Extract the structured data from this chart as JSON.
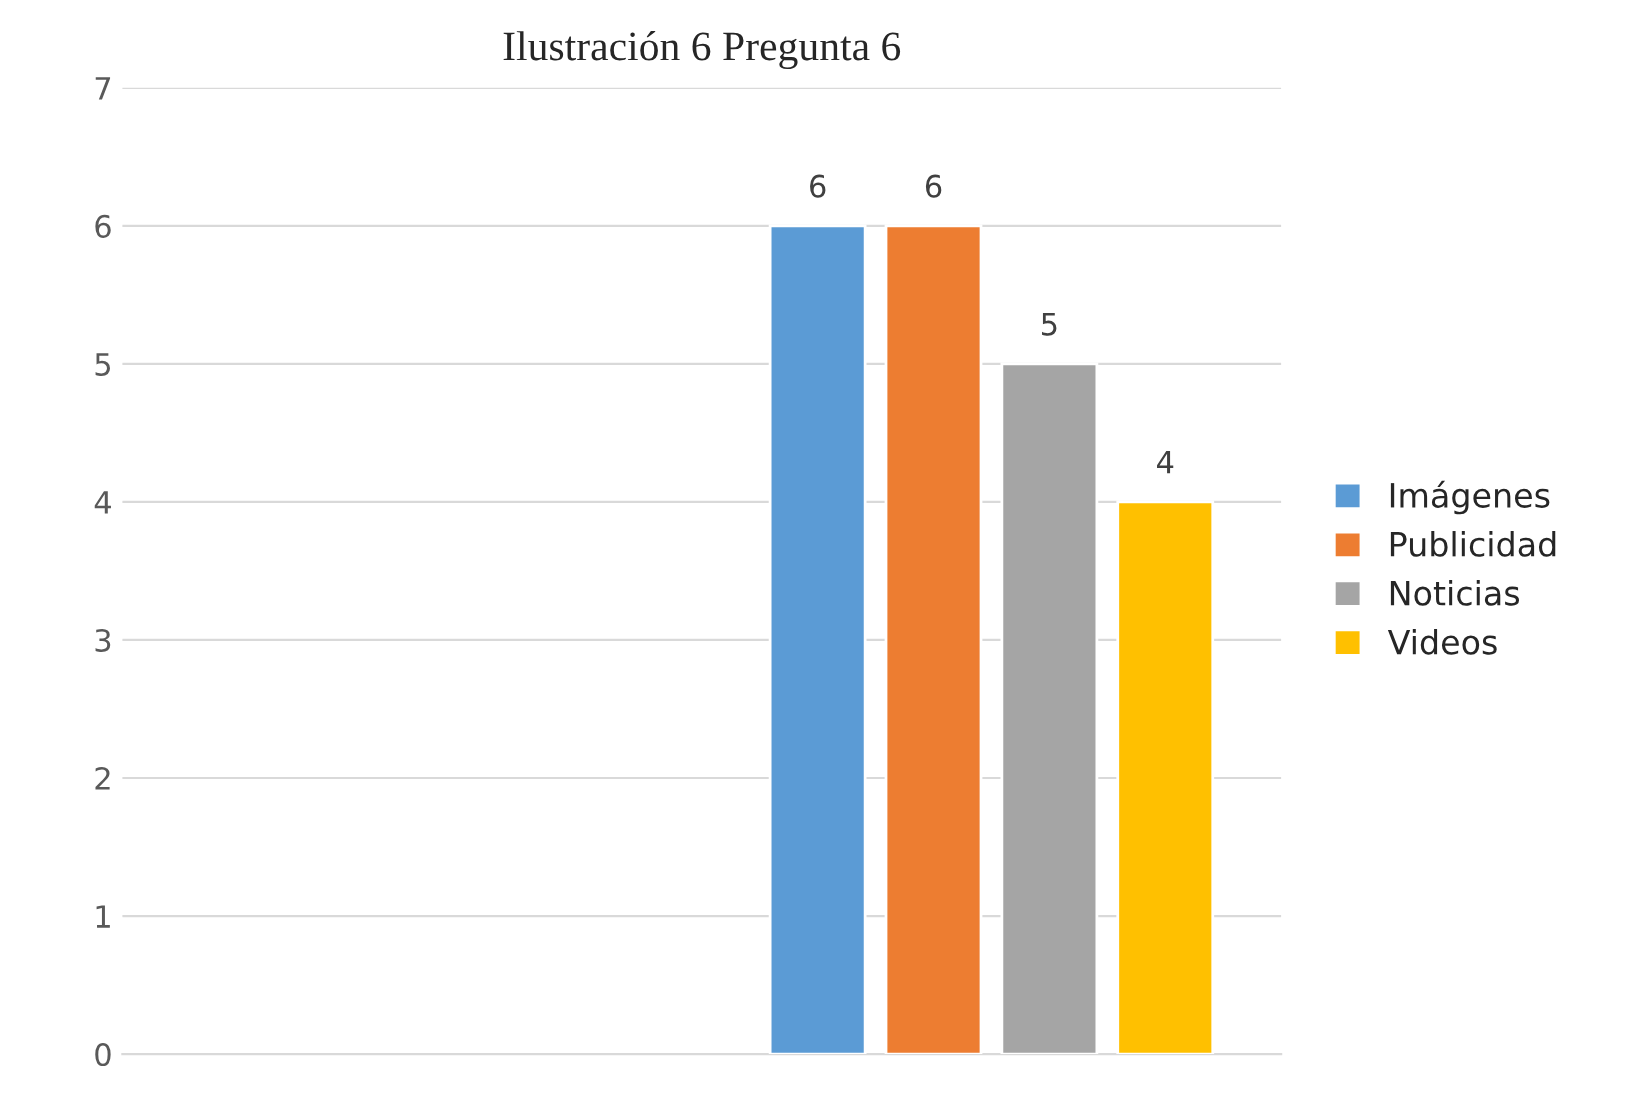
{
  "chart_data": {
    "type": "bar",
    "title": "Ilustración 6 Pregunta 6",
    "categories": [
      null,
      null
    ],
    "series": [
      {
        "name": "Imágenes",
        "color": "#5b9bd5",
        "values": [
          null,
          6
        ]
      },
      {
        "name": "Publicidad",
        "color": "#ed7d31",
        "values": [
          null,
          6
        ]
      },
      {
        "name": "Noticias",
        "color": "#a5a5a5",
        "values": [
          null,
          5
        ]
      },
      {
        "name": "Videos",
        "color": "#ffc000",
        "values": [
          null,
          4
        ]
      }
    ],
    "ylim": [
      0,
      7
    ],
    "yticks": [
      0,
      1,
      2,
      3,
      4,
      5,
      6,
      7
    ],
    "grid": "y",
    "legend": "right",
    "data_labels": true
  }
}
